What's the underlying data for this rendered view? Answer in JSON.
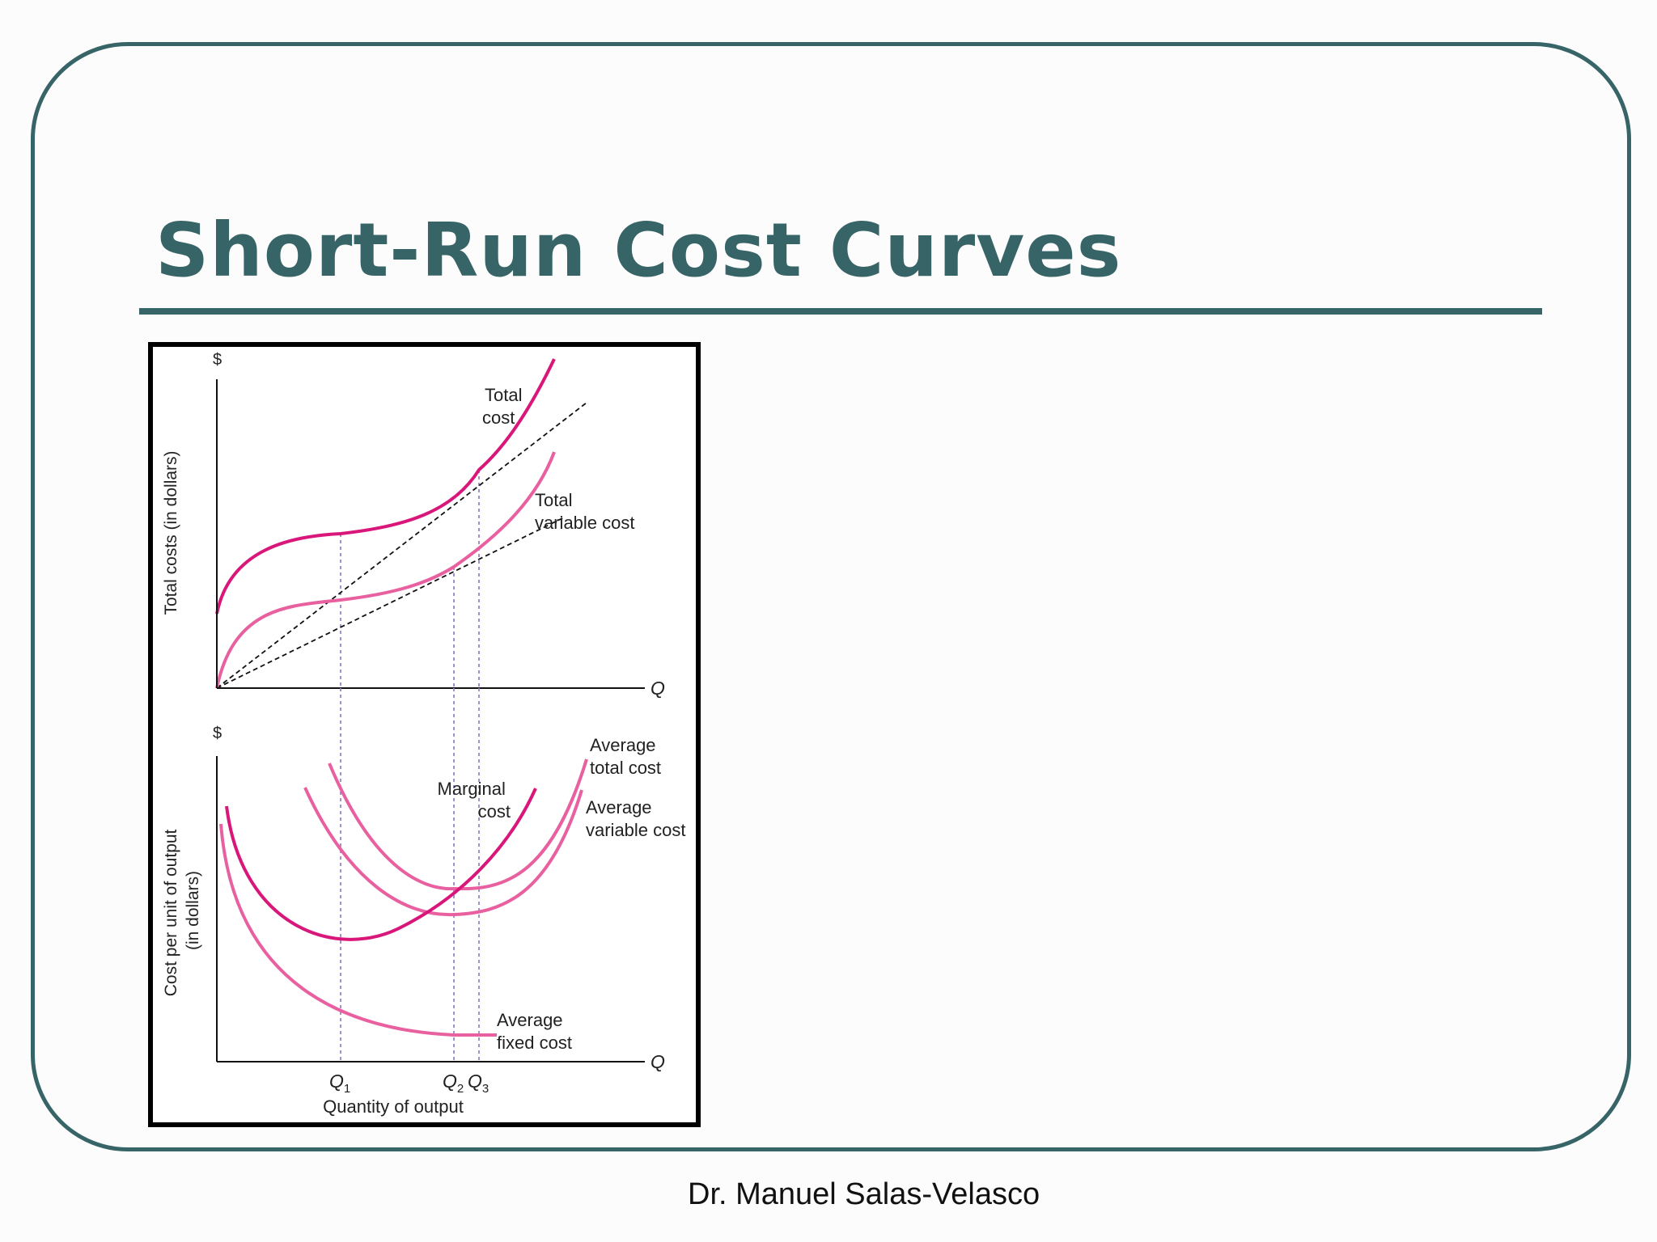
{
  "slide": {
    "title": "Short-Run Cost Curves",
    "footer": "Dr. Manuel Salas-Velasco",
    "accent_color": "#376466"
  },
  "diagram": {
    "top_panel": {
      "y_axis_symbol": "$",
      "y_axis_label": "Total costs (in dollars)",
      "x_axis_symbol": "Q",
      "curves": {
        "total_cost": [
          "Total",
          "cost"
        ],
        "total_variable_cost": [
          "Total",
          "variable cost"
        ]
      }
    },
    "bottom_panel": {
      "y_axis_symbol": "$",
      "y_axis_label": [
        "Cost per unit of output",
        "(in dollars)"
      ],
      "x_axis_symbol": "Q",
      "curves": {
        "marginal_cost": [
          "Marginal",
          "cost"
        ],
        "average_total_cost": [
          "Average",
          "total cost"
        ],
        "average_variable_cost": [
          "Average",
          "variable cost"
        ],
        "average_fixed_cost": [
          "Average",
          "fixed cost"
        ]
      },
      "x_ticks": [
        "Q",
        "1",
        "Q",
        "2",
        "Q",
        "3"
      ],
      "x_axis_label": "Quantity of output"
    },
    "colors": {
      "strong_curve": "#d9167a",
      "light_curve": "#e8609f",
      "guide_line": "#9a84c4"
    }
  }
}
